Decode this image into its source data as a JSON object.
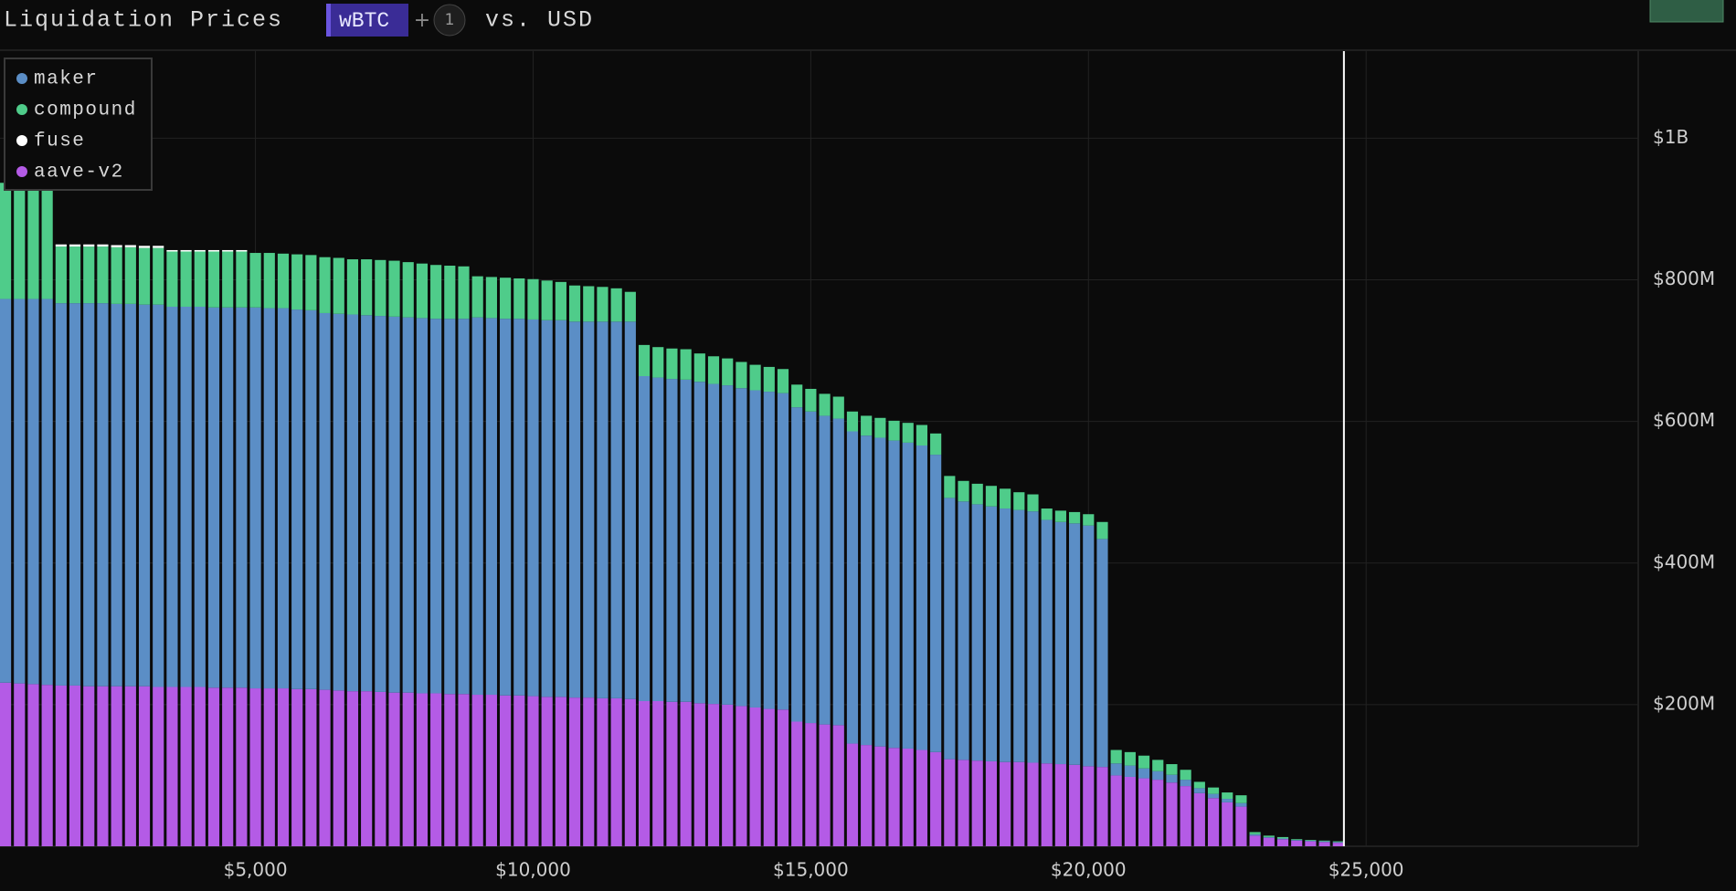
{
  "header": {
    "title": "Liquidation Prices",
    "asset": "wBTC",
    "plus": "+",
    "extra_count": "1",
    "quote": "vs. USD"
  },
  "chart_data": {
    "type": "stacked-bar",
    "x": [
      500,
      750,
      1000,
      1250,
      1500,
      1750,
      2000,
      2250,
      2500,
      2750,
      3000,
      3250,
      3500,
      3750,
      4000,
      4250,
      4500,
      4750,
      5000,
      5250,
      5500,
      5750,
      6000,
      6250,
      6500,
      6750,
      7000,
      7250,
      7500,
      7750,
      8000,
      8250,
      8500,
      8750,
      9000,
      9250,
      9500,
      9750,
      10000,
      10250,
      10500,
      10750,
      11000,
      11250,
      11500,
      11750,
      12000,
      12250,
      12500,
      12750,
      13000,
      13250,
      13500,
      13750,
      14000,
      14250,
      14500,
      14750,
      15000,
      15250,
      15500,
      15750,
      16000,
      16250,
      16500,
      16750,
      17000,
      17250,
      17500,
      17750,
      18000,
      18250,
      18500,
      18750,
      19000,
      19250,
      19500,
      19750,
      20000,
      20250,
      20500,
      20750,
      21000,
      21250,
      21500,
      21750,
      22000,
      22250,
      22500,
      22750,
      23000,
      23250,
      23500,
      23750,
      24000,
      24250,
      24500
    ],
    "series": [
      {
        "name": "maker",
        "color": "#5b8ec6",
        "values": [
          542,
          543,
          544,
          545,
          540,
          540,
          541,
          541,
          540,
          540,
          539,
          540,
          537,
          537,
          537,
          537,
          537,
          537,
          538,
          537,
          537,
          536,
          535,
          532,
          532,
          532,
          531,
          531,
          531,
          530,
          530,
          529,
          530,
          530,
          533,
          532,
          532,
          532,
          532,
          532,
          532,
          531,
          531,
          532,
          532,
          533,
          459,
          457,
          456,
          455,
          454,
          452,
          451,
          449,
          448,
          448,
          447,
          444,
          440,
          436,
          433,
          441,
          437,
          436,
          434,
          432,
          430,
          420,
          369,
          365,
          362,
          360,
          358,
          356,
          355,
          344,
          342,
          341,
          340,
          322,
          17,
          16,
          14,
          12,
          11,
          9,
          7,
          6,
          5,
          5,
          2,
          1,
          1,
          1,
          1,
          1,
          1
        ]
      },
      {
        "name": "compound",
        "color": "#4fcc8a",
        "values": [
          164,
          164,
          164,
          162,
          80,
          80,
          80,
          80,
          80,
          80,
          80,
          80,
          78,
          78,
          78,
          79,
          79,
          79,
          77,
          78,
          77,
          78,
          78,
          79,
          79,
          78,
          79,
          79,
          79,
          78,
          77,
          76,
          75,
          74,
          58,
          58,
          58,
          57,
          57,
          56,
          54,
          51,
          50,
          49,
          47,
          42,
          44,
          43,
          43,
          43,
          40,
          39,
          38,
          37,
          36,
          35,
          34,
          32,
          32,
          31,
          31,
          28,
          28,
          28,
          28,
          28,
          29,
          30,
          31,
          29,
          29,
          29,
          28,
          25,
          24,
          16,
          16,
          16,
          16,
          24,
          19,
          19,
          18,
          16,
          15,
          14,
          9,
          9,
          9,
          11,
          3,
          2,
          2,
          1,
          1,
          1,
          1
        ]
      },
      {
        "name": "fuse",
        "color": "#ffffff",
        "values": [
          0,
          0,
          0,
          0,
          3,
          3,
          3,
          3,
          3,
          3,
          3,
          3,
          2,
          2,
          2,
          2,
          2,
          2,
          0,
          0,
          0,
          0,
          0,
          0,
          0,
          0,
          0,
          0,
          0,
          0,
          0,
          0,
          0,
          0,
          0,
          0,
          0,
          0,
          0,
          0,
          0,
          0,
          0,
          0,
          0,
          0,
          0,
          0,
          0,
          0,
          0,
          0,
          0,
          0,
          0,
          0,
          0,
          0,
          0,
          0,
          0,
          0,
          0,
          0,
          0,
          0,
          0,
          0,
          0,
          0,
          0,
          0,
          0,
          0,
          0,
          0,
          0,
          0,
          0,
          0,
          0,
          0,
          0,
          0,
          0,
          0,
          0,
          0,
          0,
          0,
          0,
          0,
          0,
          0,
          0,
          0,
          0
        ]
      },
      {
        "name": "aave-v2",
        "color": "#b45be6",
        "values": [
          231,
          230,
          229,
          228,
          227,
          227,
          226,
          226,
          226,
          226,
          226,
          225,
          225,
          225,
          225,
          224,
          224,
          224,
          223,
          223,
          223,
          222,
          222,
          221,
          220,
          219,
          219,
          218,
          217,
          217,
          216,
          216,
          215,
          215,
          214,
          214,
          213,
          213,
          212,
          211,
          211,
          210,
          210,
          209,
          209,
          208,
          205,
          205,
          204,
          204,
          202,
          201,
          200,
          198,
          196,
          194,
          193,
          176,
          174,
          172,
          171,
          145,
          143,
          141,
          139,
          138,
          136,
          133,
          123,
          122,
          121,
          120,
          119,
          119,
          118,
          117,
          116,
          115,
          113,
          112,
          100,
          98,
          96,
          94,
          90,
          85,
          75,
          68,
          62,
          56,
          15,
          12,
          10,
          8,
          7,
          6,
          5
        ]
      }
    ],
    "xlim": [
      400,
      29900
    ],
    "ylim": [
      0,
      1123
    ],
    "xticks": [
      {
        "value": 5000,
        "label": "$5,000"
      },
      {
        "value": 10000,
        "label": "$10,000"
      },
      {
        "value": 15000,
        "label": "$15,000"
      },
      {
        "value": 20000,
        "label": "$20,000"
      },
      {
        "value": 25000,
        "label": "$25,000"
      }
    ],
    "yticks": [
      {
        "value": 200,
        "label": "$200M"
      },
      {
        "value": 400,
        "label": "$400M"
      },
      {
        "value": 600,
        "label": "$600M"
      },
      {
        "value": 800,
        "label": "$800M"
      },
      {
        "value": 1000,
        "label": "$1B"
      }
    ],
    "current_price": 24600,
    "grid": true
  }
}
